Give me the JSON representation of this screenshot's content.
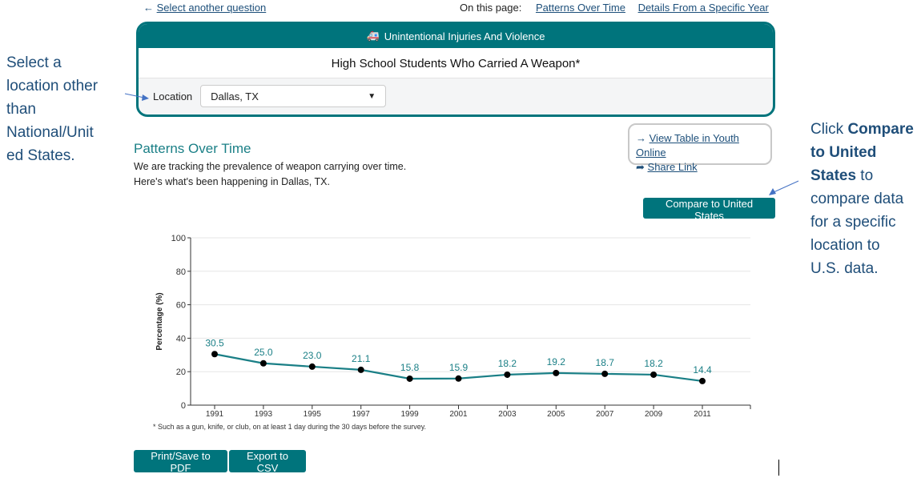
{
  "nav": {
    "back_link": "Select another question",
    "on_this_page": "On this page:",
    "links": [
      "Patterns Over Time",
      "Details From a Specific Year"
    ]
  },
  "card": {
    "category": "Unintentional Injuries And Violence",
    "category_icon": "ambulance-icon",
    "title": "High School Students Who Carried A Weapon*",
    "location_label": "Location",
    "location_value": "Dallas, TX"
  },
  "section": {
    "title": "Patterns Over Time",
    "desc1": "We are tracking the prevalence of weapon carrying over time.",
    "desc2": "Here's what's been happening in Dallas, TX."
  },
  "links": {
    "view_table": "View Table in Youth Online",
    "share": "Share Link"
  },
  "compare_button": "Compare to United States",
  "footnote": "* Such as a gun, knife, or club, on at least 1 day during the 30 days before the survey.",
  "buttons": {
    "pdf": "Print/Save to PDF",
    "csv": "Export to CSV"
  },
  "annotations": {
    "left": [
      "Select a",
      "location other",
      "than",
      "National/Unit",
      "ed States."
    ],
    "right_pre": "Click ",
    "right_bold1": "Compare",
    "right_bold2": "to United",
    "right_bold3": "States",
    "right_post": [
      " to",
      "compare data",
      "for a specific",
      "location to",
      "U.S. data."
    ]
  },
  "colors": {
    "teal": "#00747c",
    "annotation": "#1f4e79"
  },
  "chart_data": {
    "type": "line",
    "title": "",
    "xlabel": "",
    "ylabel": "Percentage (%)",
    "ylim": [
      0,
      100
    ],
    "yticks": [
      0,
      20,
      40,
      60,
      80,
      100
    ],
    "grid": true,
    "x": [
      "1991",
      "1993",
      "1995",
      "1997",
      "1999",
      "2001",
      "2003",
      "2005",
      "2007",
      "2009",
      "2011"
    ],
    "values": [
      30.5,
      25.0,
      23.0,
      21.1,
      15.8,
      15.9,
      18.2,
      19.2,
      18.7,
      18.2,
      14.4
    ],
    "labels": [
      "30.5",
      "25.0",
      "23.0",
      "21.1",
      "15.8",
      "15.9",
      "18.2",
      "19.2",
      "18.7",
      "18.2",
      "14.4"
    ]
  }
}
